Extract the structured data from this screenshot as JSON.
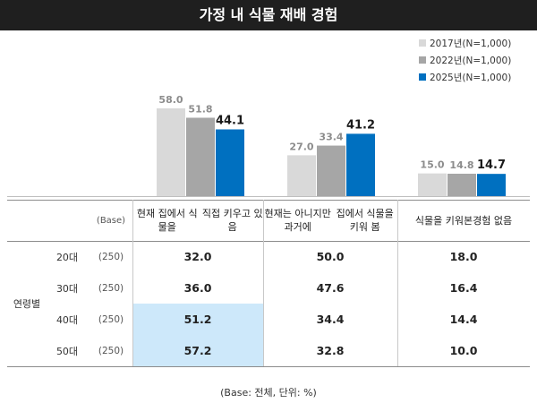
{
  "title": "가정 내 식물 재배 경험",
  "chart_data": {
    "type": "bar",
    "categories": [
      "현재 집에서 식물을 직접 키우고 있음",
      "현재는 아니지만 과거에 집에서 식물을 키워 봄",
      "식물을 키워본 경험 없음"
    ],
    "category_lines": [
      [
        "현재 집에서 식물을",
        "직접 키우고 있음"
      ],
      [
        "현재는 아니지만 과거에",
        "집에서 식물을 키워 봄"
      ],
      [
        "식물을 키워본",
        "경험 없음"
      ]
    ],
    "series": [
      {
        "name": "2017년(N=1,000)",
        "values": [
          58.0,
          27.0,
          15.0
        ],
        "color": "#d9d9d9"
      },
      {
        "name": "2022년(N=1,000)",
        "values": [
          51.8,
          33.4,
          14.8
        ],
        "color": "#a6a6a6"
      },
      {
        "name": "2025년(N=1,000)",
        "values": [
          44.1,
          41.2,
          14.7
        ],
        "color": "#0070c0"
      }
    ],
    "ylim": [
      0,
      60
    ],
    "legend_position": "top-right"
  },
  "table": {
    "base_header": "(Base)",
    "group_label": "연령별",
    "rows": [
      {
        "age": "20대",
        "base": "(250)",
        "values": [
          "32.0",
          "50.0",
          "18.0"
        ],
        "highlight": [
          false,
          false,
          false
        ]
      },
      {
        "age": "30대",
        "base": "(250)",
        "values": [
          "36.0",
          "47.6",
          "16.4"
        ],
        "highlight": [
          false,
          false,
          false
        ]
      },
      {
        "age": "40대",
        "base": "(250)",
        "values": [
          "51.2",
          "34.4",
          "14.4"
        ],
        "highlight": [
          true,
          false,
          false
        ]
      },
      {
        "age": "50대",
        "base": "(250)",
        "values": [
          "57.2",
          "32.8",
          "10.0"
        ],
        "highlight": [
          true,
          false,
          false
        ]
      }
    ]
  },
  "footnote": "(Base: 전체, 단위: %)"
}
